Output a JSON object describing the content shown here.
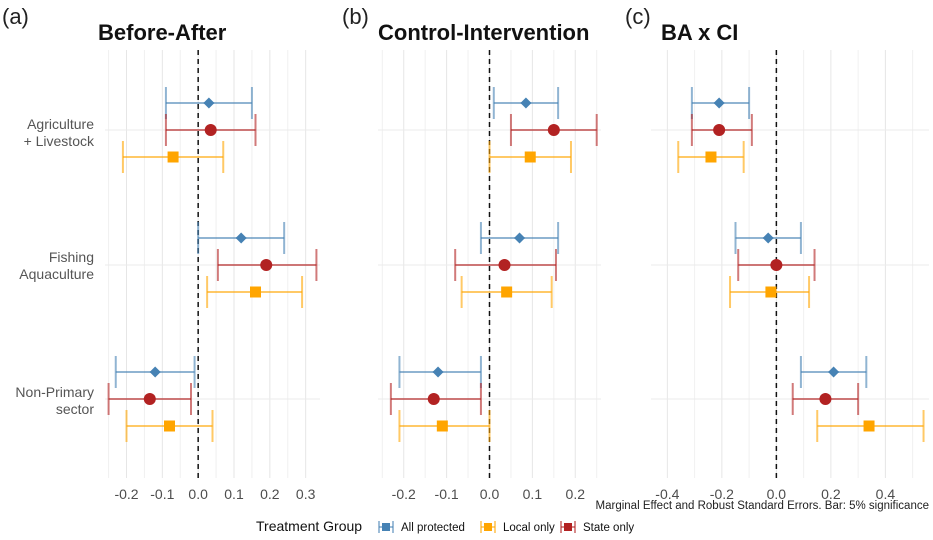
{
  "chart_data": {
    "type": "dot-whisker",
    "caption": "Marginal Effect and Robust Standard Errors. Bar: 5% significance",
    "categories": [
      "Agriculture\n+ Livestock",
      "Fishing\nAquaculture",
      "Non-Primary\nsector"
    ],
    "legend": {
      "title": "Treatment Group",
      "placement": "bottom",
      "entries": [
        {
          "name": "All protected",
          "color": "#4682b4",
          "shape": "diamond"
        },
        {
          "name": "Local only",
          "color": "#ffa500",
          "shape": "square"
        },
        {
          "name": "State only",
          "color": "#b22222",
          "shape": "circle"
        }
      ]
    },
    "panels": [
      {
        "tag": "(a)",
        "title": "Before-After",
        "xlim": [
          -0.26,
          0.34
        ],
        "xticks": [
          -0.2,
          -0.1,
          0.0,
          0.1,
          0.2,
          0.3
        ],
        "xtick_labels": [
          "-0.2",
          "-0.1",
          "0.0",
          "0.1",
          "0.2",
          "0.3"
        ],
        "zero_line": 0,
        "series": [
          {
            "name": "All protected",
            "estimates": [
              0.03,
              0.12,
              -0.12
            ],
            "lower": [
              -0.09,
              0.0,
              -0.23
            ],
            "upper": [
              0.15,
              0.24,
              -0.01
            ]
          },
          {
            "name": "State only",
            "estimates": [
              0.035,
              0.19,
              -0.135
            ],
            "lower": [
              -0.09,
              0.055,
              -0.25
            ],
            "upper": [
              0.16,
              0.33,
              -0.02
            ]
          },
          {
            "name": "Local only",
            "estimates": [
              -0.07,
              0.16,
              -0.08
            ],
            "lower": [
              -0.21,
              0.025,
              -0.2
            ],
            "upper": [
              0.07,
              0.29,
              0.04
            ]
          }
        ]
      },
      {
        "tag": "(b)",
        "title": "Control-Intervention",
        "xlim": [
          -0.26,
          0.26
        ],
        "xticks": [
          -0.2,
          -0.1,
          0.0,
          0.1,
          0.2
        ],
        "xtick_labels": [
          "-0.2",
          "-0.1",
          "0.0",
          "0.1",
          "0.2"
        ],
        "zero_line": 0,
        "series": [
          {
            "name": "All protected",
            "estimates": [
              0.085,
              0.07,
              -0.12
            ],
            "lower": [
              0.01,
              -0.02,
              -0.21
            ],
            "upper": [
              0.16,
              0.16,
              -0.02
            ]
          },
          {
            "name": "State only",
            "estimates": [
              0.15,
              0.035,
              -0.13
            ],
            "lower": [
              0.05,
              -0.08,
              -0.23
            ],
            "upper": [
              0.25,
              0.155,
              -0.02
            ]
          },
          {
            "name": "Local only",
            "estimates": [
              0.095,
              0.04,
              -0.11
            ],
            "lower": [
              0.0,
              -0.065,
              -0.21
            ],
            "upper": [
              0.19,
              0.145,
              0.0
            ]
          }
        ]
      },
      {
        "tag": "(c)",
        "title": "BA x CI",
        "xlim": [
          -0.46,
          0.56
        ],
        "xticks": [
          -0.4,
          -0.2,
          0.0,
          0.2,
          0.4
        ],
        "xtick_labels": [
          "-0.4",
          "-0.2",
          "0.0",
          "0.2",
          "0.4"
        ],
        "zero_line": 0,
        "series": [
          {
            "name": "All protected",
            "estimates": [
              -0.21,
              -0.03,
              0.21
            ],
            "lower": [
              -0.31,
              -0.15,
              0.09
            ],
            "upper": [
              -0.1,
              0.09,
              0.33
            ]
          },
          {
            "name": "State only",
            "estimates": [
              -0.21,
              0.0,
              0.18
            ],
            "lower": [
              -0.31,
              -0.14,
              0.06
            ],
            "upper": [
              -0.09,
              0.14,
              0.3
            ]
          },
          {
            "name": "Local only",
            "estimates": [
              -0.24,
              -0.02,
              0.34
            ],
            "lower": [
              -0.36,
              -0.17,
              0.15
            ],
            "upper": [
              -0.12,
              0.12,
              0.54
            ]
          }
        ]
      }
    ]
  }
}
